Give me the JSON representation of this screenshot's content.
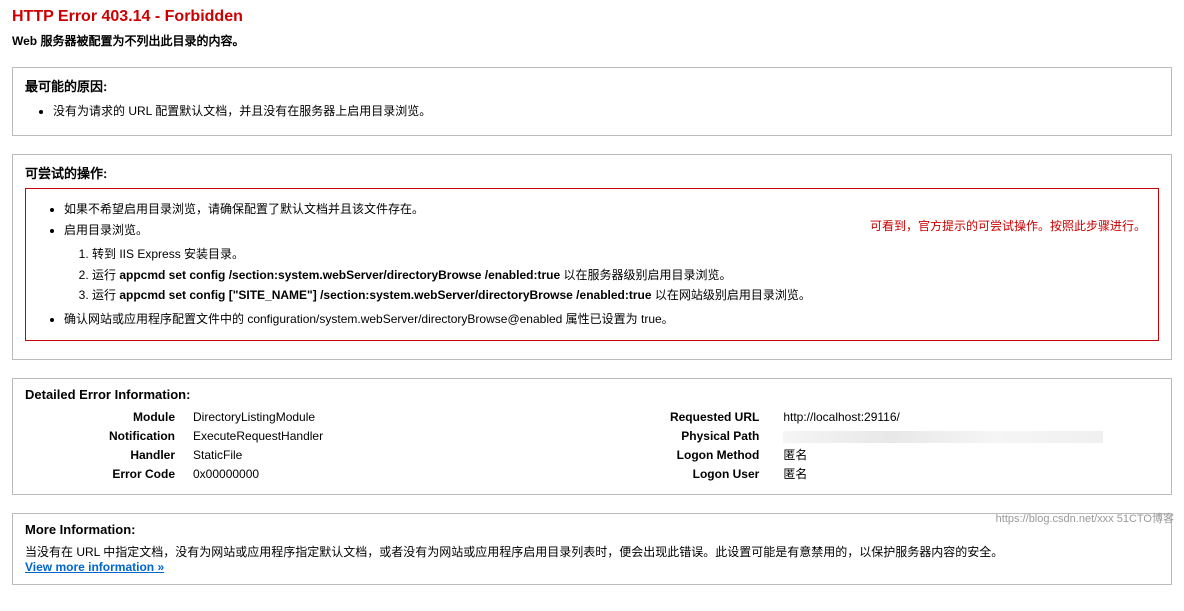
{
  "title": "HTTP Error 403.14 - Forbidden",
  "subtitle": "Web 服务器被配置为不列出此目录的内容。",
  "causes": {
    "heading": "最可能的原因:",
    "items": [
      "没有为请求的 URL 配置默认文档，并且没有在服务器上启用目录浏览。"
    ]
  },
  "actions": {
    "heading": "可尝试的操作:",
    "annotation": "可看到，官方提示的可尝试操作。按照此步骤进行。",
    "bullet1": "如果不希望启用目录浏览，请确保配置了默认文档并且该文件存在。",
    "bullet2": "启用目录浏览。",
    "step1": "转到 IIS Express 安装目录。",
    "step2_prefix": "运行 ",
    "step2_cmd": "appcmd set config /section:system.webServer/directoryBrowse /enabled:true",
    "step2_suffix": " 以在服务器级别启用目录浏览。",
    "step3_prefix": "运行 ",
    "step3_cmd": "appcmd set config [\"SITE_NAME\"] /section:system.webServer/directoryBrowse /enabled:true",
    "step3_suffix": " 以在网站级别启用目录浏览。",
    "bullet3": "确认网站或应用程序配置文件中的 configuration/system.webServer/directoryBrowse@enabled 属性已设置为 true。"
  },
  "details": {
    "heading": "Detailed Error Information:",
    "left": {
      "module_label": "Module",
      "module_value": "DirectoryListingModule",
      "notification_label": "Notification",
      "notification_value": "ExecuteRequestHandler",
      "handler_label": "Handler",
      "handler_value": "StaticFile",
      "errorcode_label": "Error Code",
      "errorcode_value": "0x00000000"
    },
    "right": {
      "url_label": "Requested URL",
      "url_value": "http://localhost:29116/",
      "path_label": "Physical Path",
      "path_value": "",
      "logonmethod_label": "Logon Method",
      "logonmethod_value": "匿名",
      "logonuser_label": "Logon User",
      "logonuser_value": "匿名"
    }
  },
  "more": {
    "heading": "More Information:",
    "text": "当没有在 URL 中指定文档，没有为网站或应用程序指定默认文档，或者没有为网站或应用程序启用目录列表时，便会出现此错误。此设置可能是有意禁用的，以保护服务器内容的安全。",
    "link": "View more information »"
  },
  "watermark": "https://blog.csdn.net/xxx 51CTO博客"
}
